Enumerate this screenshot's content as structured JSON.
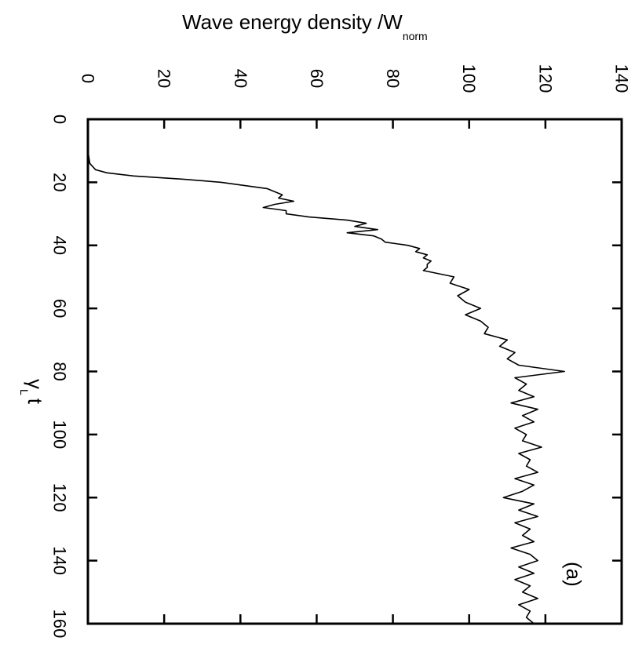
{
  "chart_data": {
    "type": "line",
    "orientation": "rotated-90-clockwise",
    "title": "",
    "ylabel": {
      "main": "Wave energy density /W",
      "subscript": "norm"
    },
    "xlabel": {
      "symbol": "γ",
      "subscript": "L",
      "suffix": "t"
    },
    "annotation": "(a)",
    "xlim": [
      0,
      160
    ],
    "ylim": [
      0,
      140
    ],
    "x_ticks": [
      0,
      20,
      40,
      60,
      80,
      100,
      120,
      140,
      160
    ],
    "y_ticks": [
      0,
      20,
      40,
      60,
      80,
      100,
      120,
      140
    ],
    "grid": false,
    "series": [
      {
        "x": [
          0,
          10,
          14,
          16,
          17,
          18,
          19,
          20,
          22,
          24,
          25,
          26,
          27,
          28,
          29,
          30,
          31,
          32,
          33,
          34,
          35,
          36,
          37,
          38,
          39,
          40,
          41,
          42,
          43,
          44,
          45,
          46,
          47,
          48,
          49,
          50,
          52,
          54,
          56,
          58,
          60,
          62,
          64,
          66,
          68,
          70,
          72,
          74,
          76,
          78,
          80,
          82,
          84,
          86,
          88,
          90,
          92,
          94,
          96,
          98,
          100,
          102,
          104,
          106,
          108,
          110,
          112,
          114,
          116,
          118,
          120,
          122,
          124,
          126,
          128,
          130,
          132,
          134,
          136,
          138,
          140,
          142,
          144,
          146,
          148,
          150,
          152,
          154,
          156,
          158,
          160
        ],
        "y": [
          0,
          0,
          0.5,
          2,
          5,
          12,
          25,
          35,
          47,
          51,
          50,
          54,
          49,
          46,
          52,
          52,
          58,
          68,
          73,
          70,
          76,
          68,
          75,
          77,
          78,
          84,
          87,
          86,
          89,
          88,
          90,
          89,
          89,
          88,
          92,
          96,
          95,
          100,
          97,
          99,
          103,
          99,
          103,
          105,
          104,
          110,
          108,
          112,
          110,
          113,
          125,
          112,
          115,
          113,
          117,
          111,
          118,
          114,
          117,
          112,
          115,
          114,
          119,
          113,
          116,
          115,
          118,
          112,
          117,
          114,
          109,
          117,
          113,
          118,
          112,
          116,
          114,
          117,
          111,
          116,
          118,
          113,
          117,
          112,
          116,
          114,
          118,
          113,
          116,
          115,
          117
        ]
      }
    ]
  }
}
